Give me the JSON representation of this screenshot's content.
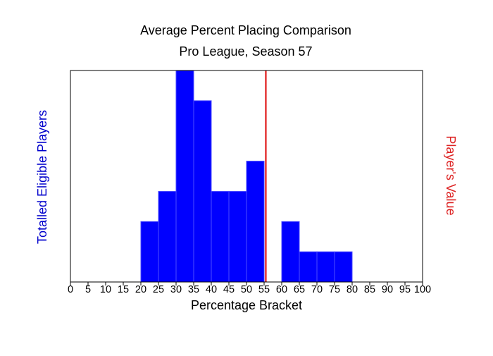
{
  "chart_data": {
    "type": "bar",
    "title": "Average Percent Placing Comparison",
    "subtitle": "Pro League, Season 57",
    "xlabel": "Percentage Bracket",
    "ylabel": "Totalled Eligible Players",
    "ylabel_right": "Player's Value",
    "xlim": [
      0,
      100
    ],
    "ylim": [
      0,
      7
    ],
    "x_ticks": [
      "0",
      "5",
      "10",
      "15",
      "20",
      "25",
      "30",
      "35",
      "40",
      "45",
      "50",
      "55",
      "60",
      "65",
      "70",
      "75",
      "80",
      "85",
      "90",
      "95",
      "100"
    ],
    "bin_width": 5,
    "bins": [
      {
        "start": 20,
        "value": 2
      },
      {
        "start": 25,
        "value": 3
      },
      {
        "start": 30,
        "value": 7
      },
      {
        "start": 35,
        "value": 6
      },
      {
        "start": 40,
        "value": 3
      },
      {
        "start": 45,
        "value": 3
      },
      {
        "start": 50,
        "value": 4
      },
      {
        "start": 60,
        "value": 2
      },
      {
        "start": 65,
        "value": 1
      },
      {
        "start": 70,
        "value": 1
      },
      {
        "start": 75,
        "value": 1
      }
    ],
    "player_value": 55.5,
    "colors": {
      "bar": "#0000ff",
      "bar_edge": "#4d4dff",
      "player_line": "#dd0000",
      "left_label": "#0000cc",
      "right_label": "#dd2222"
    },
    "grid": false
  }
}
